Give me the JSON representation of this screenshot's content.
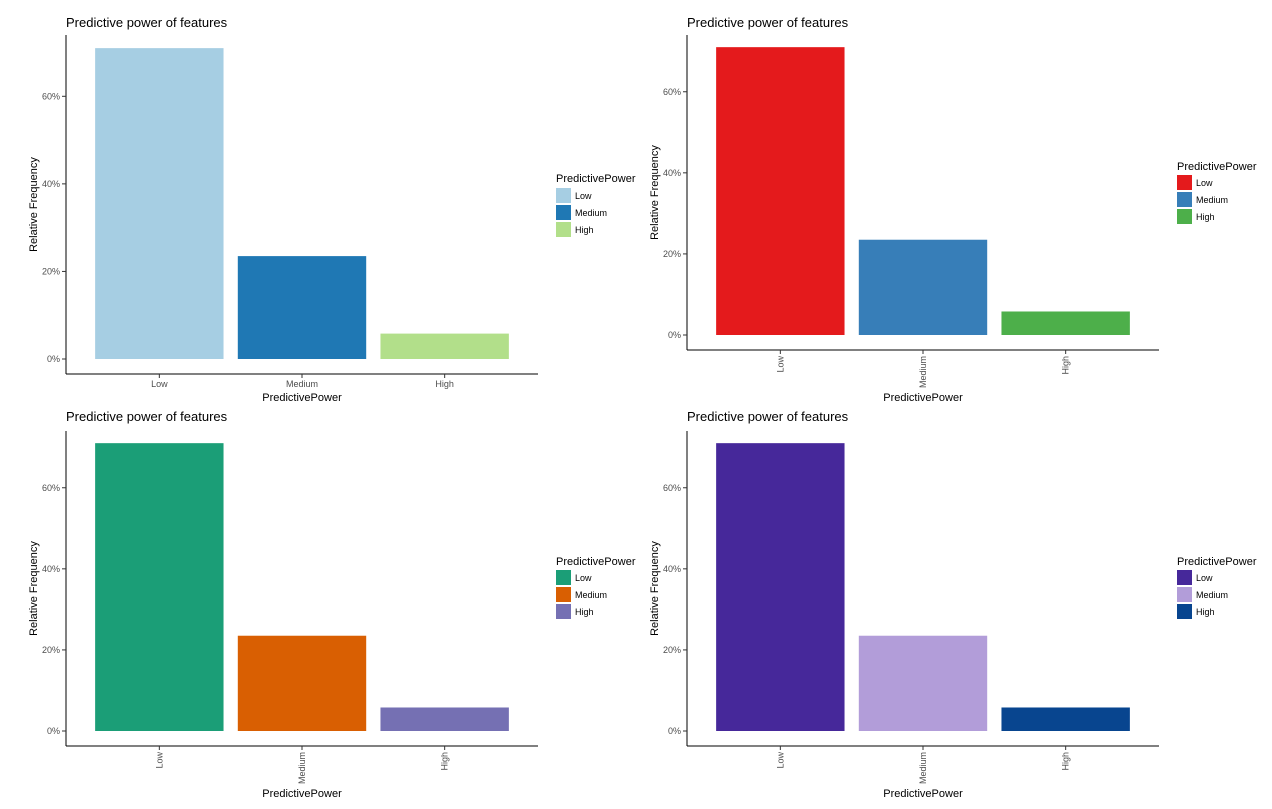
{
  "chart_data": [
    {
      "type": "bar",
      "title": "Predictive power of features",
      "xlabel": "PredictivePower",
      "ylabel": "Relative Frequency",
      "categories": [
        "Low",
        "Medium",
        "High"
      ],
      "values": [
        0.71,
        0.235,
        0.058
      ],
      "ylim": [
        0,
        0.74
      ],
      "yticks": [
        0,
        0.2,
        0.4,
        0.6
      ],
      "ytick_labels": [
        "0%",
        "20%",
        "40%",
        "60%"
      ],
      "x_tick_rotation": 0,
      "legend": {
        "title": "PredictivePower",
        "labels": [
          "Low",
          "Medium",
          "High"
        ],
        "position": "right"
      },
      "colors": [
        "#a6cee3",
        "#1f78b4",
        "#b2df8a"
      ],
      "grid": false
    },
    {
      "type": "bar",
      "title": "Predictive power of features",
      "xlabel": "PredictivePower",
      "ylabel": "Relative Frequency",
      "categories": [
        "Low",
        "Medium",
        "High"
      ],
      "values": [
        0.71,
        0.235,
        0.058
      ],
      "ylim": [
        0,
        0.74
      ],
      "yticks": [
        0,
        0.2,
        0.4,
        0.6
      ],
      "ytick_labels": [
        "0%",
        "20%",
        "40%",
        "60%"
      ],
      "x_tick_rotation": 90,
      "legend": {
        "title": "PredictivePower",
        "labels": [
          "Low",
          "Medium",
          "High"
        ],
        "position": "right"
      },
      "colors": [
        "#e41a1c",
        "#377eb8",
        "#4daf4a"
      ],
      "grid": false
    },
    {
      "type": "bar",
      "title": "Predictive power of features",
      "xlabel": "PredictivePower",
      "ylabel": "Relative Frequency",
      "categories": [
        "Low",
        "Medium",
        "High"
      ],
      "values": [
        0.71,
        0.235,
        0.058
      ],
      "ylim": [
        0,
        0.74
      ],
      "yticks": [
        0,
        0.2,
        0.4,
        0.6
      ],
      "ytick_labels": [
        "0%",
        "20%",
        "40%",
        "60%"
      ],
      "x_tick_rotation": 90,
      "legend": {
        "title": "PredictivePower",
        "labels": [
          "Low",
          "Medium",
          "High"
        ],
        "position": "right"
      },
      "colors": [
        "#1b9e77",
        "#d95f02",
        "#7570b3"
      ],
      "grid": false
    },
    {
      "type": "bar",
      "title": "Predictive power of features",
      "xlabel": "PredictivePower",
      "ylabel": "Relative Frequency",
      "categories": [
        "Low",
        "Medium",
        "High"
      ],
      "values": [
        0.71,
        0.235,
        0.058
      ],
      "ylim": [
        0,
        0.74
      ],
      "yticks": [
        0,
        0.2,
        0.4,
        0.6
      ],
      "ytick_labels": [
        "0%",
        "20%",
        "40%",
        "60%"
      ],
      "x_tick_rotation": 90,
      "legend": {
        "title": "PredictivePower",
        "labels": [
          "Low",
          "Medium",
          "High"
        ],
        "position": "right"
      },
      "colors": [
        "#46289a",
        "#b29dd9",
        "#08458f"
      ],
      "grid": false
    }
  ]
}
